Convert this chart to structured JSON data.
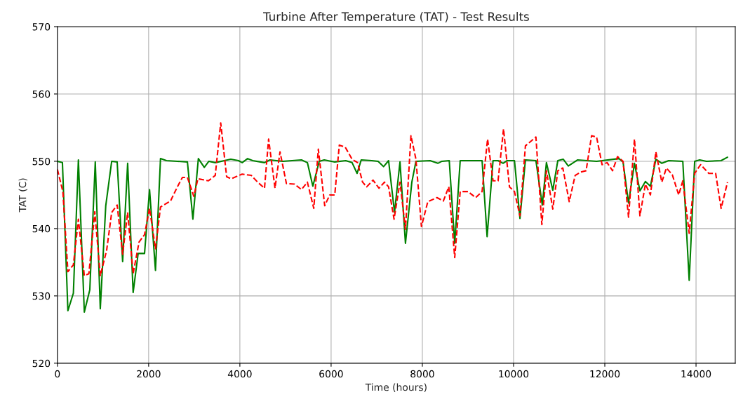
{
  "chart_data": {
    "type": "line",
    "title": "Turbine After Temperature (TAT) - Test Results",
    "xlabel": "Time (hours)",
    "ylabel": "TAT (C)",
    "xlim": [
      0,
      14860
    ],
    "xticks": [
      0,
      2000,
      4000,
      6000,
      8000,
      10000,
      12000,
      14000
    ],
    "ylim": [
      520,
      570
    ],
    "yticks": [
      520,
      530,
      540,
      550,
      560,
      570
    ],
    "grid": true,
    "legend": false,
    "series": [
      {
        "color": "#008000",
        "line_style": "solid",
        "x": [
          0,
          110,
          230,
          350,
          460,
          590,
          710,
          830,
          940,
          1060,
          1190,
          1310,
          1430,
          1540,
          1660,
          1770,
          1910,
          2020,
          2150,
          2260,
          2390,
          2630,
          2850,
          2970,
          3090,
          3220,
          3320,
          3460,
          3660,
          3800,
          3970,
          4050,
          4170,
          4280,
          4540,
          4660,
          4940,
          5350,
          5480,
          5600,
          5740,
          5850,
          6080,
          6320,
          6460,
          6570,
          6660,
          6890,
          7030,
          7150,
          7260,
          7390,
          7510,
          7630,
          7770,
          7860,
          8170,
          8340,
          8430,
          8590,
          8710,
          8830,
          9310,
          9420,
          9550,
          9660,
          9770,
          9860,
          10020,
          10140,
          10260,
          10490,
          10630,
          10720,
          10860,
          10970,
          11090,
          11200,
          11400,
          11820,
          12310,
          12400,
          12520,
          12650,
          12770,
          12890,
          13000,
          13120,
          13250,
          13400,
          13710,
          13850,
          13970,
          14080,
          14230,
          14550,
          14690
        ],
        "values": [
          550,
          549.8,
          527.8,
          530.4,
          550.2,
          527.6,
          530.9,
          549.9,
          528.1,
          543.4,
          550,
          549.9,
          535.1,
          549.7,
          530.5,
          536.3,
          536.3,
          545.8,
          533.8,
          550.4,
          550.1,
          550,
          549.9,
          541.4,
          550.4,
          549.1,
          550,
          549.8,
          550.1,
          550.3,
          550.1,
          549.8,
          550.4,
          550.1,
          549.8,
          550.2,
          550,
          550.2,
          549.8,
          546.3,
          550,
          550.2,
          549.9,
          550.1,
          549.8,
          548.2,
          550.2,
          550.1,
          550,
          549.2,
          550.1,
          542.4,
          549.9,
          537.8,
          546.9,
          550,
          550.1,
          549.7,
          550,
          550.1,
          537.8,
          550.1,
          550.1,
          538.8,
          550.1,
          550.1,
          549.7,
          550.1,
          550.1,
          541.5,
          550.2,
          550.1,
          543.5,
          549.8,
          545.7,
          550.1,
          550.3,
          549.3,
          550.2,
          550,
          550.4,
          549.9,
          543.8,
          549.7,
          545.6,
          547,
          546.3,
          550.3,
          549.7,
          550.1,
          550,
          532.3,
          550,
          550.2,
          550,
          550.1,
          550.6
        ]
      },
      {
        "color": "#ff0000",
        "line_style": "dashed",
        "x": [
          0,
          120,
          230,
          350,
          460,
          590,
          690,
          820,
          940,
          1080,
          1190,
          1310,
          1430,
          1540,
          1660,
          1790,
          1910,
          2020,
          2150,
          2260,
          2480,
          2630,
          2740,
          2850,
          2990,
          3080,
          3310,
          3460,
          3580,
          3710,
          3810,
          4050,
          4250,
          4390,
          4540,
          4630,
          4770,
          4880,
          5020,
          5200,
          5350,
          5480,
          5620,
          5720,
          5860,
          5970,
          6080,
          6180,
          6310,
          6460,
          6580,
          6690,
          6780,
          6920,
          7050,
          7170,
          7260,
          7380,
          7510,
          7630,
          7750,
          7860,
          7980,
          8120,
          8320,
          8460,
          8580,
          8710,
          8830,
          9000,
          9170,
          9310,
          9430,
          9550,
          9660,
          9780,
          9910,
          10020,
          10140,
          10260,
          10490,
          10620,
          10720,
          10860,
          10970,
          11080,
          11220,
          11350,
          11470,
          11590,
          11710,
          11820,
          11940,
          12050,
          12170,
          12280,
          12400,
          12520,
          12650,
          12770,
          12890,
          13000,
          13120,
          13250,
          13350,
          13480,
          13620,
          13710,
          13850,
          13970,
          14100,
          14280,
          14430,
          14550,
          14690
        ],
        "values": [
          548.8,
          545.5,
          533.6,
          534.6,
          541.4,
          533,
          533.3,
          542.5,
          533,
          536.8,
          542.4,
          543.5,
          536.2,
          542.4,
          533.3,
          538,
          539.1,
          543,
          537,
          543.2,
          544.1,
          546.2,
          547.6,
          547.6,
          544.8,
          547.4,
          547.1,
          547.9,
          555.7,
          547.7,
          547.4,
          548.1,
          547.9,
          546.9,
          546,
          553.3,
          546,
          551.4,
          546.7,
          546.6,
          545.8,
          546.9,
          543,
          551.8,
          543.4,
          545,
          545,
          552.4,
          552.1,
          550.3,
          549.8,
          546.9,
          546.2,
          547.2,
          546,
          546.9,
          546.2,
          541.4,
          546.9,
          539.9,
          553.8,
          550.3,
          540.3,
          544,
          544.6,
          544.1,
          546.2,
          535.7,
          545.5,
          545.5,
          544.6,
          545.5,
          553.3,
          547.1,
          547.1,
          554.8,
          546.2,
          545.5,
          541.9,
          552.3,
          553.6,
          540.6,
          548.6,
          542.9,
          548.6,
          549,
          544,
          547.9,
          548.4,
          548.6,
          553.8,
          553.6,
          549.5,
          549.8,
          548.6,
          550.7,
          550,
          541.7,
          553.3,
          541.9,
          546.6,
          545,
          551.4,
          546.9,
          549,
          548,
          545,
          547.1,
          539.3,
          548.2,
          549.5,
          548.2,
          548.2,
          543,
          546.9
        ]
      }
    ]
  }
}
